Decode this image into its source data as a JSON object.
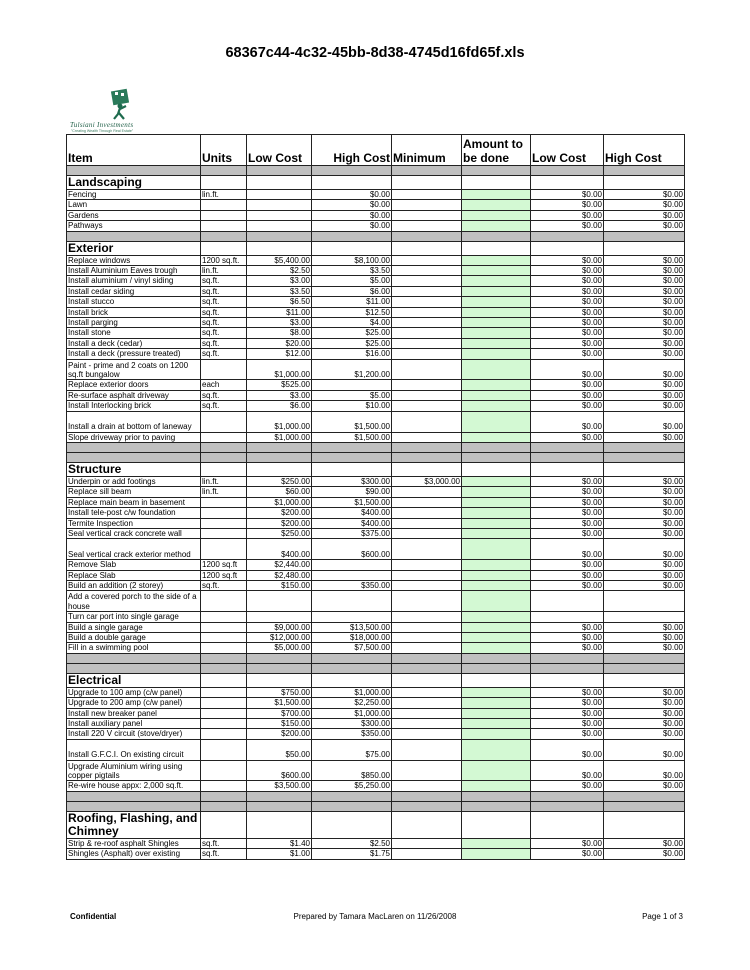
{
  "title": "68367c44-4c32-45bb-8d38-4745d16fd65f.xls",
  "logo": {
    "brand": "Tulsiani Investments",
    "tagline": "\"Creating Wealth Through Real Estate\""
  },
  "colors": {
    "amount_fill": "#d3f9d3",
    "separator_fill": "#c0c0c0",
    "logo_green": "#1e6b4e"
  },
  "headers": [
    "Item",
    "Units",
    "Low Cost",
    "High Cost",
    "Minimum",
    "Amount to be done",
    "Low Cost",
    "High Cost"
  ],
  "rows": [
    {
      "type": "gray"
    },
    {
      "type": "section",
      "label": "Landscaping"
    },
    {
      "type": "item",
      "cells": [
        "Fencing",
        "lin.ft.",
        "",
        "$0.00",
        "",
        "$0.00",
        "$0.00"
      ]
    },
    {
      "type": "item",
      "cells": [
        "Lawn",
        "",
        "",
        "$0.00",
        "",
        "$0.00",
        "$0.00"
      ]
    },
    {
      "type": "item",
      "cells": [
        "Gardens",
        "",
        "",
        "$0.00",
        "",
        "$0.00",
        "$0.00"
      ]
    },
    {
      "type": "item",
      "cells": [
        "Pathways",
        "",
        "",
        "$0.00",
        "",
        "$0.00",
        "$0.00"
      ]
    },
    {
      "type": "gray"
    },
    {
      "type": "section",
      "label": "Exterior"
    },
    {
      "type": "item",
      "cells": [
        "Replace windows",
        "1200 sq.ft.",
        "$5,400.00",
        "$8,100.00",
        "",
        "$0.00",
        "$0.00"
      ]
    },
    {
      "type": "item",
      "cells": [
        "Install Aluminium Eaves trough",
        "lin.ft.",
        "$2.50",
        "$3.50",
        "",
        "$0.00",
        "$0.00"
      ]
    },
    {
      "type": "item",
      "cells": [
        "Install aluminium / vinyl siding",
        "sq.ft.",
        "$3.00",
        "$5.00",
        "",
        "$0.00",
        "$0.00"
      ]
    },
    {
      "type": "item",
      "cells": [
        "Install cedar siding",
        "sq.ft.",
        "$3.50",
        "$6.00",
        "",
        "$0.00",
        "$0.00"
      ]
    },
    {
      "type": "item",
      "cells": [
        "Install stucco",
        "sq.ft.",
        "$6.50",
        "$11.00",
        "",
        "$0.00",
        "$0.00"
      ]
    },
    {
      "type": "item",
      "cells": [
        "Install brick",
        "sq.ft.",
        "$11.00",
        "$12.50",
        "",
        "$0.00",
        "$0.00"
      ]
    },
    {
      "type": "item",
      "cells": [
        "Install parging",
        "sq.ft.",
        "$3.00",
        "$4.00",
        "",
        "$0.00",
        "$0.00"
      ]
    },
    {
      "type": "item",
      "cells": [
        "Install stone",
        "sq.ft.",
        "$8.00",
        "$25.00",
        "",
        "$0.00",
        "$0.00"
      ]
    },
    {
      "type": "item",
      "cells": [
        "Install a deck (cedar)",
        "sq.ft.",
        "$20.00",
        "$25.00",
        "",
        "$0.00",
        "$0.00"
      ]
    },
    {
      "type": "item",
      "cells": [
        "Install a deck (pressure treated)",
        "sq.ft.",
        "$12.00",
        "$16.00",
        "",
        "$0.00",
        "$0.00"
      ]
    },
    {
      "type": "item",
      "cells": [
        "Paint - prime and 2 coats on 1200 sq.ft bungalow",
        "",
        "$1,000.00",
        "$1,200.00",
        "",
        "$0.00",
        "$0.00"
      ]
    },
    {
      "type": "item",
      "cells": [
        "Replace exterior doors",
        "each",
        "$525.00",
        "",
        "",
        "$0.00",
        "$0.00"
      ]
    },
    {
      "type": "item",
      "cells": [
        "Re-surface asphalt driveway",
        "sq.ft.",
        "$3.00",
        "$5.00",
        "",
        "$0.00",
        "$0.00"
      ]
    },
    {
      "type": "item",
      "cells": [
        "Install Interlocking brick",
        "sq.ft.",
        "$6.00",
        "$10.00",
        "",
        "$0.00",
        "$0.00"
      ]
    },
    {
      "type": "item",
      "cells": [
        "Install a drain at bottom of laneway",
        "",
        "$1,000.00",
        "$1,500.00",
        "",
        "$0.00",
        "$0.00"
      ]
    },
    {
      "type": "item",
      "cells": [
        "Slope driveway prior to paving",
        "",
        "$1,000.00",
        "$1,500.00",
        "",
        "$0.00",
        "$0.00"
      ]
    },
    {
      "type": "gray"
    },
    {
      "type": "gray"
    },
    {
      "type": "section",
      "label": "Structure"
    },
    {
      "type": "item",
      "cells": [
        "Underpin or add footings",
        "lin.ft.",
        "$250.00",
        "$300.00",
        "$3,000.00",
        "$0.00",
        "$0.00"
      ]
    },
    {
      "type": "item",
      "cells": [
        "Replace sill beam",
        "lin.ft.",
        "$60.00",
        "$90.00",
        "",
        "$0.00",
        "$0.00"
      ]
    },
    {
      "type": "item",
      "cells": [
        "Replace main beam in basement",
        "",
        "$1,000.00",
        "$1,500.00",
        "",
        "$0.00",
        "$0.00"
      ]
    },
    {
      "type": "item",
      "cells": [
        "Install tele-post c/w foundation",
        "",
        "$200.00",
        "$400.00",
        "",
        "$0.00",
        "$0.00"
      ]
    },
    {
      "type": "item",
      "cells": [
        "Termite Inspection",
        "",
        "$200.00",
        "$400.00",
        "",
        "$0.00",
        "$0.00"
      ]
    },
    {
      "type": "item",
      "cells": [
        "Seal vertical crack concrete wall",
        "",
        "$250.00",
        "$375.00",
        "",
        "$0.00",
        "$0.00"
      ]
    },
    {
      "type": "item",
      "cells": [
        "Seal vertical crack exterior method",
        "",
        "$400.00",
        "$600.00",
        "",
        "$0.00",
        "$0.00"
      ]
    },
    {
      "type": "item",
      "cells": [
        "Remove Slab",
        "1200 sq.ft",
        "$2,440.00",
        "",
        "",
        "$0.00",
        "$0.00"
      ]
    },
    {
      "type": "item",
      "cells": [
        "Replace Slab",
        "1200 sq.ft",
        "$2,480.00",
        "",
        "",
        "$0.00",
        "$0.00"
      ]
    },
    {
      "type": "item",
      "cells": [
        "Build an addition (2 storey)",
        "sq.ft.",
        "$150.00",
        "$350.00",
        "",
        "$0.00",
        "$0.00"
      ]
    },
    {
      "type": "item",
      "cells": [
        "Add a covered porch to the side of a house",
        "",
        "",
        "",
        "",
        "",
        ""
      ]
    },
    {
      "type": "item",
      "cells": [
        "Turn car port into single garage",
        "",
        "",
        "",
        "",
        "",
        ""
      ]
    },
    {
      "type": "item",
      "cells": [
        "Build a single garage",
        "",
        "$9,000.00",
        "$13,500.00",
        "",
        "$0.00",
        "$0.00"
      ]
    },
    {
      "type": "item",
      "cells": [
        "Build a double garage",
        "",
        "$12,000.00",
        "$18,000.00",
        "",
        "$0.00",
        "$0.00"
      ]
    },
    {
      "type": "item",
      "cells": [
        "Fill in a swimming pool",
        "",
        "$5,000.00",
        "$7,500.00",
        "",
        "$0.00",
        "$0.00"
      ]
    },
    {
      "type": "gray"
    },
    {
      "type": "gray"
    },
    {
      "type": "section",
      "label": "Electrical"
    },
    {
      "type": "item",
      "cells": [
        "Upgrade to 100 amp (c/w panel)",
        "",
        "$750.00",
        "$1,000.00",
        "",
        "$0.00",
        "$0.00"
      ]
    },
    {
      "type": "item",
      "cells": [
        "Upgrade to 200 amp (c/w panel)",
        "",
        "$1,500.00",
        "$2,250.00",
        "",
        "$0.00",
        "$0.00"
      ]
    },
    {
      "type": "item",
      "cells": [
        "Install new breaker panel",
        "",
        "$700.00",
        "$1,000.00",
        "",
        "$0.00",
        "$0.00"
      ]
    },
    {
      "type": "item",
      "cells": [
        "Install auxiliary panel",
        "",
        "$150.00",
        "$300.00",
        "",
        "$0.00",
        "$0.00"
      ]
    },
    {
      "type": "item",
      "cells": [
        "Install 220 V circuit (stove/dryer)",
        "",
        "$200.00",
        "$350.00",
        "",
        "$0.00",
        "$0.00"
      ]
    },
    {
      "type": "item",
      "cells": [
        "Install G.F.C.I. On existing circuit",
        "",
        "$50.00",
        "$75.00",
        "",
        "$0.00",
        "$0.00"
      ]
    },
    {
      "type": "item",
      "cells": [
        "Upgrade Aluminium wiring using copper pigtails",
        "",
        "$600.00",
        "$850.00",
        "",
        "$0.00",
        "$0.00"
      ]
    },
    {
      "type": "item",
      "cells": [
        "Re-wire house appx: 2,000 sq.ft.",
        "",
        "$3,500.00",
        "$5,250.00",
        "",
        "$0.00",
        "$0.00"
      ]
    },
    {
      "type": "gray"
    },
    {
      "type": "gray"
    },
    {
      "type": "section",
      "label": "Roofing, Flashing, and Chimney"
    },
    {
      "type": "item",
      "cells": [
        "Strip & re-roof asphalt Shingles",
        "sq.ft.",
        "$1.40",
        "$2.50",
        "",
        "$0.00",
        "$0.00"
      ]
    },
    {
      "type": "item",
      "cells": [
        "Shingles (Asphalt) over existing",
        "sq.ft.",
        "$1.00",
        "$1.75",
        "",
        "$0.00",
        "$0.00"
      ]
    }
  ],
  "footer": {
    "left": "Confidential",
    "center": "Prepared by Tamara MacLaren on 11/26/2008",
    "right": "Page 1 of 3"
  }
}
